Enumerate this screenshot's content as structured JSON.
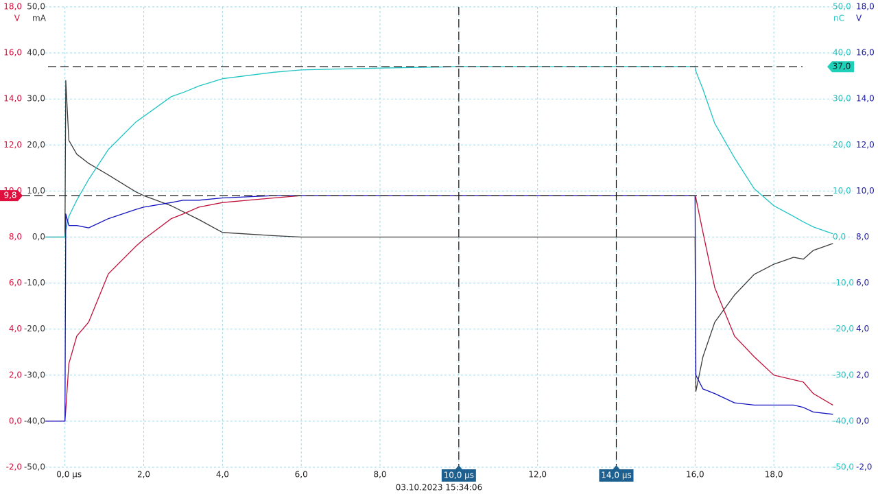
{
  "chart_data": {
    "type": "line",
    "timestamp": "03.10.2023 15:34:06",
    "xlim": [
      -0.5,
      20
    ],
    "xticks": [
      {
        "value": 0,
        "label": "0,0 µs"
      },
      {
        "value": 2,
        "label": "2,0"
      },
      {
        "value": 4,
        "label": "4,0"
      },
      {
        "value": 6,
        "label": "6,0"
      },
      {
        "value": 8,
        "label": "8,0"
      },
      {
        "value": 10,
        "label": null
      },
      {
        "value": 12,
        "label": "12,0"
      },
      {
        "value": 14,
        "label": null
      },
      {
        "value": 16,
        "label": "16,0"
      },
      {
        "value": 18,
        "label": "18,0"
      }
    ],
    "grid": true,
    "axes": [
      {
        "unit": "V",
        "color": "#d4103c",
        "side": "left-outer",
        "ylim": [
          -2,
          18
        ],
        "yticks": [
          {
            "value": 18,
            "label": "18,0"
          },
          {
            "value": 16,
            "label": "16,0"
          },
          {
            "value": 14,
            "label": "14,0"
          },
          {
            "value": 12,
            "label": "12,0"
          },
          {
            "value": 10,
            "label": "10,0"
          },
          {
            "value": 8,
            "label": "8,0"
          },
          {
            "value": 6,
            "label": "6,0"
          },
          {
            "value": 4,
            "label": "4,0"
          },
          {
            "value": 2,
            "label": "2,0"
          },
          {
            "value": 0,
            "label": "0,0"
          },
          {
            "value": -2,
            "label": "-2,0"
          }
        ]
      },
      {
        "unit": "mA",
        "color": "#333333",
        "side": "left-inner",
        "ylim": [
          -50,
          50
        ],
        "yticks": [
          {
            "value": 50,
            "label": "50,0"
          },
          {
            "value": 40,
            "label": "40,0"
          },
          {
            "value": 30,
            "label": "30,0"
          },
          {
            "value": 20,
            "label": "20,0"
          },
          {
            "value": 10,
            "label": "10,0"
          },
          {
            "value": 0,
            "label": "0,0"
          },
          {
            "value": -10,
            "label": "-10,0"
          },
          {
            "value": -20,
            "label": "-20,0"
          },
          {
            "value": -30,
            "label": "-30,0"
          },
          {
            "value": -40,
            "label": "-40,0"
          },
          {
            "value": -50,
            "label": "-50,0"
          }
        ]
      },
      {
        "unit": "nC",
        "color": "#1fc4c4",
        "side": "right-inner",
        "ylim": [
          -50,
          50
        ],
        "yticks": [
          {
            "value": 50,
            "label": "50,0"
          },
          {
            "value": 40,
            "label": "40,0"
          },
          {
            "value": 30,
            "label": "30,0"
          },
          {
            "value": 20,
            "label": "20,0"
          },
          {
            "value": 10,
            "label": "10,0"
          },
          {
            "value": 0,
            "label": "0,0"
          },
          {
            "value": -10,
            "label": "-10,0"
          },
          {
            "value": -20,
            "label": "-20,0"
          },
          {
            "value": -30,
            "label": "-30,0"
          },
          {
            "value": -40,
            "label": "-40,0"
          },
          {
            "value": -50,
            "label": "-50,0"
          }
        ]
      },
      {
        "unit": "V",
        "color": "#1a1aa8",
        "side": "right-outer",
        "ylim": [
          -2,
          18
        ],
        "yticks": [
          {
            "value": 18,
            "label": "18,0"
          },
          {
            "value": 16,
            "label": "16,0"
          },
          {
            "value": 14,
            "label": "14,0"
          },
          {
            "value": 12,
            "label": "12,0"
          },
          {
            "value": 10,
            "label": "10,0"
          },
          {
            "value": 8,
            "label": "8,0"
          },
          {
            "value": 6,
            "label": "6,0"
          },
          {
            "value": 4,
            "label": "4,0"
          },
          {
            "value": 2,
            "label": "2,0"
          },
          {
            "value": 0,
            "label": "0,0"
          },
          {
            "value": -2,
            "label": "-2,0"
          }
        ]
      }
    ],
    "x": [
      -0.5,
      0,
      0.02,
      0.1,
      0.3,
      0.6,
      1.1,
      1.8,
      2.0,
      2.7,
      3.0,
      3.4,
      4.0,
      5.3,
      6,
      8,
      10,
      12,
      14,
      16,
      16.02,
      16.2,
      16.5,
      17,
      17.5,
      18,
      18.5,
      18.75,
      19,
      19.5
    ],
    "series": [
      {
        "color": "#3a3a3a",
        "axis": 1,
        "values": [
          0.0,
          0.0,
          34.0,
          21.0,
          18.0,
          16.0,
          13.5,
          9.8,
          9.0,
          6.8,
          5.5,
          3.8,
          1.0,
          0.3,
          0.0,
          0.0,
          0.0,
          0.0,
          0.0,
          0.0,
          -33.5,
          -26.0,
          -18.5,
          -12.6,
          -8.1,
          -5.9,
          -4.4,
          -4.8,
          -2.9,
          -1.4
        ]
      },
      {
        "color": "#1fc4c4",
        "axis": 2,
        "values": [
          0.0,
          0.0,
          1.5,
          4.5,
          8.0,
          12.5,
          19.0,
          25.0,
          26.2,
          30.5,
          31.4,
          32.8,
          34.4,
          35.8,
          36.3,
          36.7,
          37.0,
          37.0,
          37.0,
          37.0,
          36.0,
          32.1,
          24.7,
          17.2,
          10.5,
          6.8,
          4.5,
          3.3,
          2.2,
          0.7
        ]
      },
      {
        "color": "#c0103a",
        "axis": 0,
        "values": [
          0.0,
          0.0,
          0.5,
          2.5,
          3.7,
          4.3,
          6.4,
          7.6,
          7.9,
          8.8,
          9.0,
          9.3,
          9.5,
          9.7,
          9.8,
          9.8,
          9.8,
          9.8,
          9.8,
          9.8,
          9.7,
          8.2,
          5.8,
          3.7,
          2.8,
          2.0,
          1.8,
          1.7,
          1.2,
          0.7
        ]
      },
      {
        "color": "#1212c0",
        "axis": 3,
        "values": [
          0.0,
          0.0,
          9.0,
          8.5,
          8.5,
          8.4,
          8.8,
          9.2,
          9.3,
          9.5,
          9.6,
          9.6,
          9.7,
          9.8,
          9.8,
          9.8,
          9.8,
          9.8,
          9.8,
          9.8,
          2.0,
          1.4,
          1.2,
          0.8,
          0.7,
          0.7,
          0.7,
          0.6,
          0.4,
          0.3
        ]
      }
    ],
    "cursors": [
      {
        "orientation": "horizontal",
        "axis": 2,
        "value": 37.0,
        "label": "37,0",
        "color": "#1fd0b8"
      },
      {
        "orientation": "horizontal",
        "axis": 0,
        "value": 9.8,
        "label": "9,8",
        "color": "#e0103e"
      },
      {
        "orientation": "vertical",
        "value": 10.0,
        "label": "10,0 µs",
        "color": "#1d5f8f"
      },
      {
        "orientation": "vertical",
        "value": 14.0,
        "label": "14,0 µs",
        "color": "#1d5f8f"
      }
    ]
  }
}
